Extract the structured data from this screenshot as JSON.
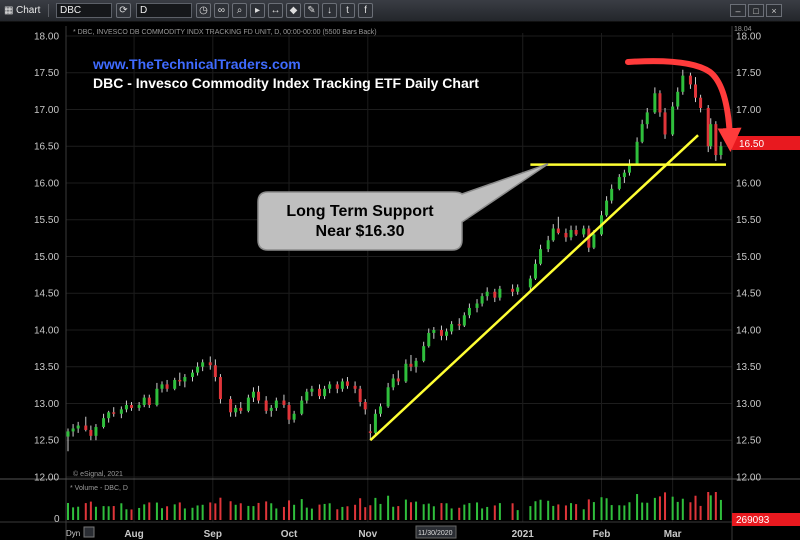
{
  "toolbar": {
    "app_label": "Chart",
    "symbol_value": "DBC",
    "interval_value": "D"
  },
  "chart": {
    "info_line": "* DBC, INVESCO DB COMMODITY INDX TRACKING FD UNIT, D, 00:00-00:00 (5500 Bars Back)",
    "url_text": "www.TheTechnicalTraders.com",
    "title": "DBC - Invesco Commodity Index Tracking ETF Daily Chart",
    "callout_line1": "Long Term Support",
    "callout_line2": "Near $16.30",
    "copyright": "© eSignal, 2021",
    "volume_label": "* Volume - DBC, D",
    "price_top_clip": "18.04",
    "last_price": "16.50",
    "last_volume": "269093",
    "date_tag": "11/30/2020",
    "dyn_label": "Dyn"
  },
  "colors": {
    "up": "#2fbf3c",
    "down": "#e0353a",
    "trendline": "#ffff33",
    "arrow": "#ff3b3b",
    "url": "#3f6bff",
    "price_tag": "#e8191f",
    "grid": "#1d1d1d"
  },
  "chart_data": {
    "type": "candlestick",
    "title": "DBC - Invesco Commodity Index Tracking ETF Daily Chart",
    "y_axis": {
      "ticks": [
        "12.00",
        "12.50",
        "13.00",
        "13.50",
        "14.00",
        "14.50",
        "15.00",
        "15.50",
        "16.00",
        "16.50",
        "17.00",
        "17.50",
        "18.00"
      ],
      "range": [
        12.0,
        18.04
      ]
    },
    "x_axis": {
      "ticks": [
        "Aug",
        "Sep",
        "Oct",
        "Nov",
        "2021",
        "Feb",
        "Mar"
      ],
      "range": [
        "2020-07-06",
        "2021-03-22"
      ]
    },
    "volume_axis_tick": "0",
    "ohlc": [
      {
        "d": "2020-07-06",
        "o": 12.55,
        "h": 12.66,
        "l": 12.35,
        "c": 12.62
      },
      {
        "d": "2020-07-08",
        "o": 12.62,
        "h": 12.72,
        "l": 12.55,
        "c": 12.66
      },
      {
        "d": "2020-07-10",
        "o": 12.66,
        "h": 12.75,
        "l": 12.6,
        "c": 12.7
      },
      {
        "d": "2020-07-13",
        "o": 12.7,
        "h": 12.82,
        "l": 12.62,
        "c": 12.64
      },
      {
        "d": "2020-07-15",
        "o": 12.64,
        "h": 12.7,
        "l": 12.5,
        "c": 12.56
      },
      {
        "d": "2020-07-17",
        "o": 12.56,
        "h": 12.72,
        "l": 12.5,
        "c": 12.68
      },
      {
        "d": "2020-07-20",
        "o": 12.68,
        "h": 12.86,
        "l": 12.66,
        "c": 12.8
      },
      {
        "d": "2020-07-22",
        "o": 12.8,
        "h": 12.9,
        "l": 12.74,
        "c": 12.88
      },
      {
        "d": "2020-07-24",
        "o": 12.88,
        "h": 12.95,
        "l": 12.82,
        "c": 12.86
      },
      {
        "d": "2020-07-27",
        "o": 12.86,
        "h": 12.96,
        "l": 12.8,
        "c": 12.92
      },
      {
        "d": "2020-07-29",
        "o": 12.92,
        "h": 13.04,
        "l": 12.88,
        "c": 12.98
      },
      {
        "d": "2020-07-31",
        "o": 12.98,
        "h": 13.02,
        "l": 12.9,
        "c": 12.94
      },
      {
        "d": "2020-08-03",
        "o": 12.94,
        "h": 13.02,
        "l": 12.9,
        "c": 12.98
      },
      {
        "d": "2020-08-05",
        "o": 12.98,
        "h": 13.12,
        "l": 12.95,
        "c": 13.08
      },
      {
        "d": "2020-08-07",
        "o": 13.08,
        "h": 13.12,
        "l": 12.94,
        "c": 12.98
      },
      {
        "d": "2020-08-10",
        "o": 12.98,
        "h": 13.28,
        "l": 12.96,
        "c": 13.2
      },
      {
        "d": "2020-08-12",
        "o": 13.2,
        "h": 13.3,
        "l": 13.15,
        "c": 13.26
      },
      {
        "d": "2020-08-14",
        "o": 13.26,
        "h": 13.32,
        "l": 13.16,
        "c": 13.2
      },
      {
        "d": "2020-08-17",
        "o": 13.2,
        "h": 13.35,
        "l": 13.18,
        "c": 13.32
      },
      {
        "d": "2020-08-19",
        "o": 13.32,
        "h": 13.42,
        "l": 13.24,
        "c": 13.3
      },
      {
        "d": "2020-08-21",
        "o": 13.3,
        "h": 13.4,
        "l": 13.22,
        "c": 13.36
      },
      {
        "d": "2020-08-24",
        "o": 13.36,
        "h": 13.46,
        "l": 13.3,
        "c": 13.42
      },
      {
        "d": "2020-08-26",
        "o": 13.42,
        "h": 13.56,
        "l": 13.38,
        "c": 13.5
      },
      {
        "d": "2020-08-28",
        "o": 13.5,
        "h": 13.6,
        "l": 13.44,
        "c": 13.56
      },
      {
        "d": "2020-08-31",
        "o": 13.56,
        "h": 13.64,
        "l": 13.46,
        "c": 13.52
      },
      {
        "d": "2020-09-02",
        "o": 13.52,
        "h": 13.6,
        "l": 13.3,
        "c": 13.36
      },
      {
        "d": "2020-09-04",
        "o": 13.36,
        "h": 13.4,
        "l": 13.0,
        "c": 13.06
      },
      {
        "d": "2020-09-08",
        "o": 13.06,
        "h": 13.1,
        "l": 12.82,
        "c": 12.88
      },
      {
        "d": "2020-09-10",
        "o": 12.88,
        "h": 12.98,
        "l": 12.82,
        "c": 12.94
      },
      {
        "d": "2020-09-12",
        "o": 12.94,
        "h": 13.02,
        "l": 12.86,
        "c": 12.9
      },
      {
        "d": "2020-09-15",
        "o": 12.9,
        "h": 13.12,
        "l": 12.88,
        "c": 13.08
      },
      {
        "d": "2020-09-17",
        "o": 13.08,
        "h": 13.22,
        "l": 13.02,
        "c": 13.16
      },
      {
        "d": "2020-09-19",
        "o": 13.16,
        "h": 13.24,
        "l": 13.0,
        "c": 13.04
      },
      {
        "d": "2020-09-22",
        "o": 13.04,
        "h": 13.1,
        "l": 12.86,
        "c": 12.9
      },
      {
        "d": "2020-09-24",
        "o": 12.9,
        "h": 12.98,
        "l": 12.82,
        "c": 12.94
      },
      {
        "d": "2020-09-26",
        "o": 12.94,
        "h": 13.08,
        "l": 12.9,
        "c": 13.04
      },
      {
        "d": "2020-09-29",
        "o": 13.04,
        "h": 13.12,
        "l": 12.94,
        "c": 12.98
      },
      {
        "d": "2020-10-01",
        "o": 12.98,
        "h": 13.02,
        "l": 12.72,
        "c": 12.78
      },
      {
        "d": "2020-10-03",
        "o": 12.78,
        "h": 12.9,
        "l": 12.74,
        "c": 12.86
      },
      {
        "d": "2020-10-06",
        "o": 12.86,
        "h": 13.1,
        "l": 12.84,
        "c": 13.04
      },
      {
        "d": "2020-10-08",
        "o": 13.04,
        "h": 13.2,
        "l": 13.0,
        "c": 13.16
      },
      {
        "d": "2020-10-10",
        "o": 13.16,
        "h": 13.24,
        "l": 13.1,
        "c": 13.2
      },
      {
        "d": "2020-10-13",
        "o": 13.2,
        "h": 13.26,
        "l": 13.06,
        "c": 13.1
      },
      {
        "d": "2020-10-15",
        "o": 13.1,
        "h": 13.24,
        "l": 13.06,
        "c": 13.2
      },
      {
        "d": "2020-10-17",
        "o": 13.2,
        "h": 13.3,
        "l": 13.14,
        "c": 13.26
      },
      {
        "d": "2020-10-20",
        "o": 13.26,
        "h": 13.3,
        "l": 13.14,
        "c": 13.2
      },
      {
        "d": "2020-10-22",
        "o": 13.2,
        "h": 13.34,
        "l": 13.16,
        "c": 13.3
      },
      {
        "d": "2020-10-24",
        "o": 13.3,
        "h": 13.36,
        "l": 13.2,
        "c": 13.24
      },
      {
        "d": "2020-10-27",
        "o": 13.24,
        "h": 13.3,
        "l": 13.14,
        "c": 13.2
      },
      {
        "d": "2020-10-29",
        "o": 13.2,
        "h": 13.24,
        "l": 12.96,
        "c": 13.02
      },
      {
        "d": "2020-10-31",
        "o": 13.02,
        "h": 13.06,
        "l": 12.85,
        "c": 12.92
      },
      {
        "d": "2020-11-02",
        "o": 12.62,
        "h": 12.72,
        "l": 12.5,
        "c": 12.6
      },
      {
        "d": "2020-11-04",
        "o": 12.6,
        "h": 12.92,
        "l": 12.56,
        "c": 12.86
      },
      {
        "d": "2020-11-06",
        "o": 12.86,
        "h": 13.0,
        "l": 12.82,
        "c": 12.96
      },
      {
        "d": "2020-11-09",
        "o": 12.96,
        "h": 13.28,
        "l": 12.94,
        "c": 13.22
      },
      {
        "d": "2020-11-11",
        "o": 13.22,
        "h": 13.4,
        "l": 13.18,
        "c": 13.34
      },
      {
        "d": "2020-11-13",
        "o": 13.34,
        "h": 13.45,
        "l": 13.25,
        "c": 13.3
      },
      {
        "d": "2020-11-16",
        "o": 13.3,
        "h": 13.6,
        "l": 13.28,
        "c": 13.54
      },
      {
        "d": "2020-11-18",
        "o": 13.54,
        "h": 13.66,
        "l": 13.44,
        "c": 13.5
      },
      {
        "d": "2020-11-20",
        "o": 13.5,
        "h": 13.62,
        "l": 13.42,
        "c": 13.58
      },
      {
        "d": "2020-11-23",
        "o": 13.58,
        "h": 13.84,
        "l": 13.56,
        "c": 13.78
      },
      {
        "d": "2020-11-25",
        "o": 13.78,
        "h": 14.02,
        "l": 13.76,
        "c": 13.96
      },
      {
        "d": "2020-11-27",
        "o": 13.96,
        "h": 14.04,
        "l": 13.88,
        "c": 14.0
      },
      {
        "d": "2020-11-30",
        "o": 14.0,
        "h": 14.06,
        "l": 13.86,
        "c": 13.92
      },
      {
        "d": "2020-12-02",
        "o": 13.92,
        "h": 14.02,
        "l": 13.86,
        "c": 13.98
      },
      {
        "d": "2020-12-04",
        "o": 13.98,
        "h": 14.12,
        "l": 13.94,
        "c": 14.08
      },
      {
        "d": "2020-12-07",
        "o": 14.08,
        "h": 14.16,
        "l": 14.0,
        "c": 14.06
      },
      {
        "d": "2020-12-09",
        "o": 14.06,
        "h": 14.24,
        "l": 14.04,
        "c": 14.2
      },
      {
        "d": "2020-12-11",
        "o": 14.2,
        "h": 14.36,
        "l": 14.16,
        "c": 14.3
      },
      {
        "d": "2020-12-14",
        "o": 14.3,
        "h": 14.42,
        "l": 14.24,
        "c": 14.36
      },
      {
        "d": "2020-12-16",
        "o": 14.36,
        "h": 14.5,
        "l": 14.32,
        "c": 14.46
      },
      {
        "d": "2020-12-18",
        "o": 14.46,
        "h": 14.58,
        "l": 14.4,
        "c": 14.52
      },
      {
        "d": "2020-12-21",
        "o": 14.52,
        "h": 14.56,
        "l": 14.38,
        "c": 14.44
      },
      {
        "d": "2020-12-23",
        "o": 14.44,
        "h": 14.6,
        "l": 14.4,
        "c": 14.56
      },
      {
        "d": "2020-12-28",
        "o": 14.56,
        "h": 14.62,
        "l": 14.46,
        "c": 14.52
      },
      {
        "d": "2020-12-30",
        "o": 14.52,
        "h": 14.62,
        "l": 14.48,
        "c": 14.58
      },
      {
        "d": "2021-01-04",
        "o": 14.58,
        "h": 14.74,
        "l": 14.54,
        "c": 14.7
      },
      {
        "d": "2021-01-06",
        "o": 14.7,
        "h": 14.96,
        "l": 14.68,
        "c": 14.9
      },
      {
        "d": "2021-01-08",
        "o": 14.9,
        "h": 15.16,
        "l": 14.88,
        "c": 15.1
      },
      {
        "d": "2021-01-11",
        "o": 15.1,
        "h": 15.28,
        "l": 15.06,
        "c": 15.22
      },
      {
        "d": "2021-01-13",
        "o": 15.22,
        "h": 15.44,
        "l": 15.2,
        "c": 15.38
      },
      {
        "d": "2021-01-15",
        "o": 15.38,
        "h": 15.54,
        "l": 15.3,
        "c": 15.32
      },
      {
        "d": "2021-01-18",
        "o": 15.32,
        "h": 15.38,
        "l": 15.2,
        "c": 15.26
      },
      {
        "d": "2021-01-20",
        "o": 15.26,
        "h": 15.42,
        "l": 15.22,
        "c": 15.36
      },
      {
        "d": "2021-01-22",
        "o": 15.36,
        "h": 15.42,
        "l": 15.28,
        "c": 15.3
      },
      {
        "d": "2021-01-25",
        "o": 15.3,
        "h": 15.42,
        "l": 15.26,
        "c": 15.38
      },
      {
        "d": "2021-01-27",
        "o": 15.38,
        "h": 15.42,
        "l": 15.06,
        "c": 15.12
      },
      {
        "d": "2021-01-29",
        "o": 15.12,
        "h": 15.36,
        "l": 15.1,
        "c": 15.3
      },
      {
        "d": "2021-02-01",
        "o": 15.3,
        "h": 15.62,
        "l": 15.28,
        "c": 15.56
      },
      {
        "d": "2021-02-03",
        "o": 15.56,
        "h": 15.82,
        "l": 15.54,
        "c": 15.76
      },
      {
        "d": "2021-02-05",
        "o": 15.76,
        "h": 15.98,
        "l": 15.72,
        "c": 15.92
      },
      {
        "d": "2021-02-08",
        "o": 15.92,
        "h": 16.12,
        "l": 15.9,
        "c": 16.08
      },
      {
        "d": "2021-02-10",
        "o": 16.08,
        "h": 16.18,
        "l": 16.0,
        "c": 16.14
      },
      {
        "d": "2021-02-12",
        "o": 16.14,
        "h": 16.32,
        "l": 16.1,
        "c": 16.26
      },
      {
        "d": "2021-02-15",
        "o": 16.26,
        "h": 16.62,
        "l": 16.24,
        "c": 16.56
      },
      {
        "d": "2021-02-17",
        "o": 16.56,
        "h": 16.86,
        "l": 16.54,
        "c": 16.8
      },
      {
        "d": "2021-02-19",
        "o": 16.8,
        "h": 17.02,
        "l": 16.74,
        "c": 16.96
      },
      {
        "d": "2021-02-22",
        "o": 16.96,
        "h": 17.3,
        "l": 16.94,
        "c": 17.22
      },
      {
        "d": "2021-02-24",
        "o": 17.22,
        "h": 17.26,
        "l": 16.9,
        "c": 16.96
      },
      {
        "d": "2021-02-26",
        "o": 16.96,
        "h": 17.02,
        "l": 16.6,
        "c": 16.66
      },
      {
        "d": "2021-03-01",
        "o": 16.66,
        "h": 17.1,
        "l": 16.64,
        "c": 17.04
      },
      {
        "d": "2021-03-03",
        "o": 17.04,
        "h": 17.3,
        "l": 17.0,
        "c": 17.24
      },
      {
        "d": "2021-03-05",
        "o": 17.24,
        "h": 17.54,
        "l": 17.2,
        "c": 17.46
      },
      {
        "d": "2021-03-08",
        "o": 17.46,
        "h": 17.5,
        "l": 17.28,
        "c": 17.34
      },
      {
        "d": "2021-03-10",
        "o": 17.34,
        "h": 17.44,
        "l": 17.1,
        "c": 17.16
      },
      {
        "d": "2021-03-12",
        "o": 17.16,
        "h": 17.2,
        "l": 16.96,
        "c": 17.02
      },
      {
        "d": "2021-03-15",
        "o": 17.02,
        "h": 17.06,
        "l": 16.42,
        "c": 16.5
      },
      {
        "d": "2021-03-16",
        "o": 16.5,
        "h": 16.88,
        "l": 16.46,
        "c": 16.8
      },
      {
        "d": "2021-03-18",
        "o": 16.8,
        "h": 16.84,
        "l": 16.3,
        "c": 16.38
      },
      {
        "d": "2021-03-20",
        "o": 16.38,
        "h": 16.56,
        "l": 16.32,
        "c": 16.5
      }
    ],
    "annotations": {
      "support_level": 16.25,
      "support_start": "2021-01-04",
      "support_end": "2021-03-22",
      "trendline": [
        {
          "d": "2020-11-02",
          "v": 12.5
        },
        {
          "d": "2021-03-11",
          "v": 16.65
        }
      ]
    }
  }
}
